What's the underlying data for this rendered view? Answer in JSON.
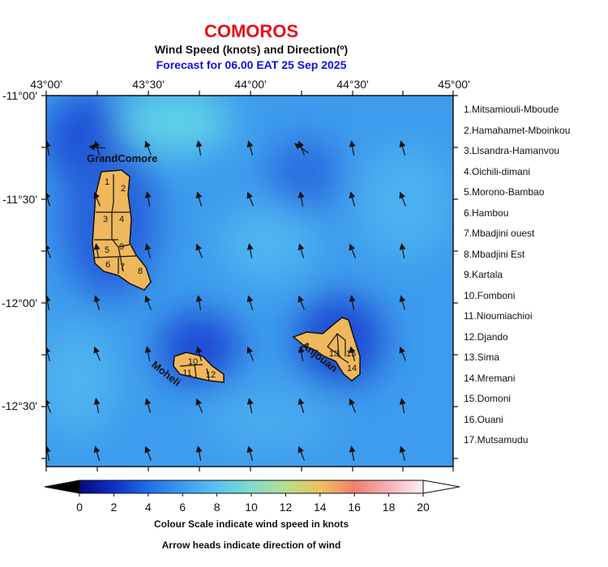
{
  "title": "COMOROS",
  "subtitle": "Wind Speed (knots) and Direction(º)",
  "forecast_line": "Forecast for  06.00 EAT 25 Sep 2025",
  "lon_labels": [
    "43°00'",
    "43°30'",
    "44°00'",
    "44°30'",
    "45°00'"
  ],
  "lat_labels": [
    "-11°00'",
    "-11°30'",
    "-12°00'",
    "-12°30'"
  ],
  "island_labels": {
    "grand_comore": "GrandComore",
    "moheli": "Moheli",
    "anjouan": "Anjouan"
  },
  "region_numbers": [
    "1",
    "2",
    "3",
    "4",
    "5",
    "6",
    "7",
    "8",
    "9",
    "10",
    "11",
    "12",
    "13",
    "14",
    "15"
  ],
  "legend_items": [
    "1.Mitsamiouli-Mboude",
    "2.Hamahamet-Mboinkou",
    "3.Llsandra-Hamanvou",
    "4.Oichili-dimani",
    "5.Morono-Bambao",
    "6.Hambou",
    "7.Mbadjini ouest",
    "8.Mbadjini Est",
    "9.Kartala",
    "10.Fomboni",
    "11.Nioumiachioi",
    "12.Djando",
    "13.Sima",
    "14.Mremani",
    "15.Domoni",
    "16.Ouani",
    "17.Mutsamudu"
  ],
  "colorbar": {
    "ticks": [
      "0",
      "2",
      "4",
      "6",
      "8",
      "10",
      "12",
      "14",
      "16",
      "18",
      "20"
    ],
    "min": 0,
    "max": 20,
    "colors": [
      "#050a7a",
      "#1030c8",
      "#1e6fe8",
      "#3a9cf2",
      "#58c2f2",
      "#7fdccd",
      "#b4e08c",
      "#f0c060",
      "#f08070",
      "#f8b0b8",
      "#fff0f4"
    ]
  },
  "caption_1": "Colour Scale indicate wind speed in knots",
  "caption_2": "Arrow heads indicate direction of wind",
  "map_colors": {
    "ocean_base": "#3f9ef0",
    "low_wind": "#1e55d8",
    "high_wind": "#5cd6e6",
    "land": "#f0b85c"
  }
}
